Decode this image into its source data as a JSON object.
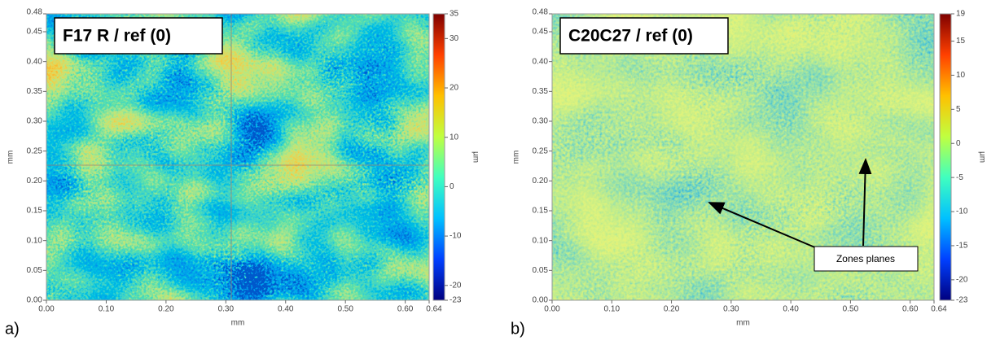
{
  "chart_data": [
    {
      "type": "heatmap",
      "panel_label": "a)",
      "title": "F17 R / ref (0)",
      "x_label": "mm",
      "y_label": "mm",
      "colorbar_label": "µm",
      "xlim": [
        0,
        0.64
      ],
      "xticks": [
        {
          "value": 0,
          "label": "0.00"
        },
        {
          "value": 0.1,
          "label": "0.10"
        },
        {
          "value": 0.2,
          "label": "0.20"
        },
        {
          "value": 0.3,
          "label": "0.30"
        },
        {
          "value": 0.4,
          "label": "0.40"
        },
        {
          "value": 0.5,
          "label": "0.50"
        },
        {
          "value": 0.6,
          "label": "0.60"
        },
        0.64
      ],
      "ylim": [
        0,
        0.48
      ],
      "yticks": [
        {
          "value": 0,
          "label": "0.00"
        },
        0.05,
        {
          "value": 0.1,
          "label": "0.10"
        },
        0.15,
        {
          "value": 0.2,
          "label": "0.20"
        },
        0.25,
        {
          "value": 0.3,
          "label": "0.30"
        },
        0.35,
        {
          "value": 0.4,
          "label": "0.40"
        },
        0.45,
        0.48
      ],
      "clim": [
        -23,
        35
      ],
      "cticks": [
        35,
        30,
        20,
        10,
        0,
        -10,
        -20,
        -23
      ],
      "colormap": [
        "#00007f",
        "#0040ff",
        "#00c0ff",
        "#40ffbf",
        "#c0ff40",
        "#ffc000",
        "#ff4000",
        "#7f0000"
      ]
    },
    {
      "type": "heatmap",
      "panel_label": "b)",
      "title": "C20C27 / ref (0)",
      "x_label": "mm",
      "y_label": "mm",
      "colorbar_label": "µm",
      "xlim": [
        0,
        0.64
      ],
      "xticks": [
        {
          "value": 0,
          "label": "0.00"
        },
        {
          "value": 0.1,
          "label": "0.10"
        },
        {
          "value": 0.2,
          "label": "0.20"
        },
        {
          "value": 0.3,
          "label": "0.30"
        },
        {
          "value": 0.4,
          "label": "0.40"
        },
        {
          "value": 0.5,
          "label": "0.50"
        },
        {
          "value": 0.6,
          "label": "0.60"
        },
        0.64
      ],
      "ylim": [
        0,
        0.48
      ],
      "yticks": [
        {
          "value": 0,
          "label": "0.00"
        },
        0.05,
        {
          "value": 0.1,
          "label": "0.10"
        },
        0.15,
        {
          "value": 0.2,
          "label": "0.20"
        },
        0.25,
        {
          "value": 0.3,
          "label": "0.30"
        },
        0.35,
        {
          "value": 0.4,
          "label": "0.40"
        },
        0.45,
        0.48
      ],
      "clim": [
        -23,
        19
      ],
      "cticks": [
        19,
        15,
        10,
        5,
        0,
        -5,
        -10,
        -15,
        -20,
        -23
      ],
      "colormap": [
        "#00007f",
        "#0040ff",
        "#00c0ff",
        "#40ffbf",
        "#c0ff40",
        "#ffc000",
        "#ff4000",
        "#7f0000"
      ],
      "annotation": "Zones planes"
    }
  ]
}
